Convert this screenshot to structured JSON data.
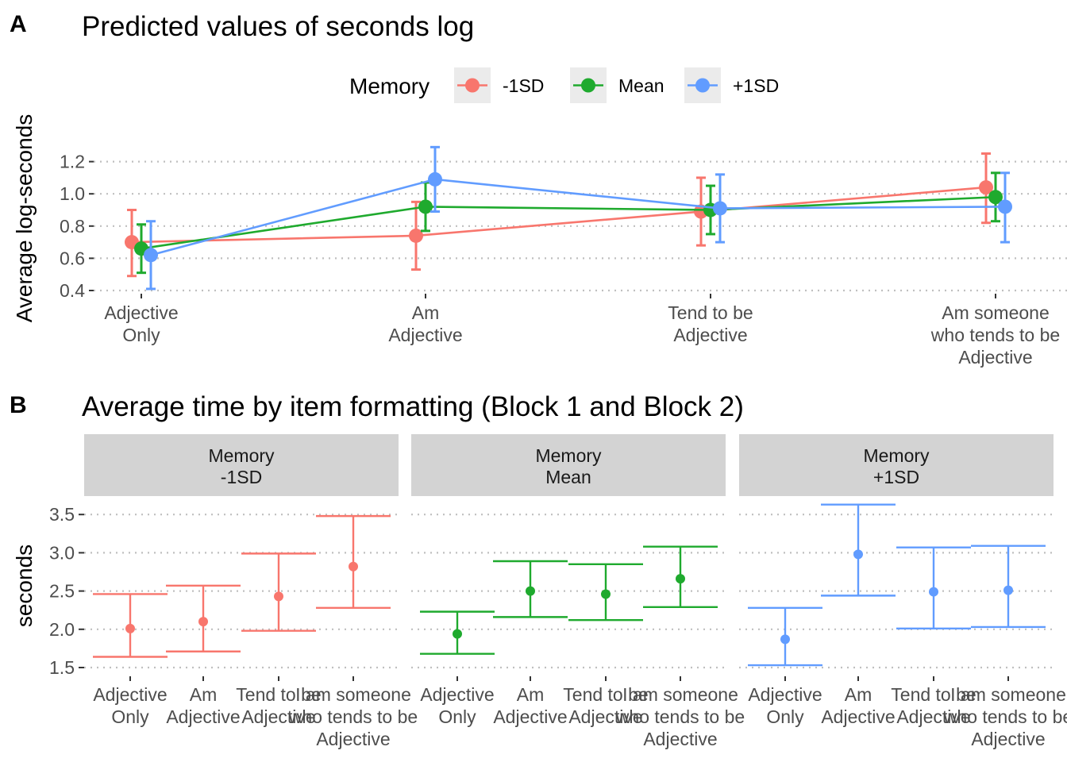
{
  "figure": {
    "panel_a_tag": "A",
    "panel_b_tag": "B"
  },
  "colors": {
    "-1SD": "#F8766D",
    "Mean": "#1FAA2E",
    "+1SD": "#619CFF",
    "grid": "#bfbfbf",
    "strip_bg": "#d3d3d3"
  },
  "chart_data": [
    {
      "type": "line",
      "title": "Predicted values of seconds log",
      "xlabel": "",
      "ylabel": "Average log-seconds",
      "categories": [
        [
          "Adjective",
          "Only"
        ],
        [
          "Am",
          "Adjective"
        ],
        [
          "Tend to be",
          "Adjective"
        ],
        [
          "Am someone",
          "who tends to be",
          "Adjective"
        ]
      ],
      "yticks": [
        "0.4",
        "0.6",
        "0.8",
        "1.0",
        "1.2"
      ],
      "ylim": [
        0.35,
        1.3
      ],
      "grid": "horizontal dotted",
      "legend": {
        "title": "Memory",
        "position": "top"
      },
      "series": [
        {
          "name": "-1SD",
          "color": "#F8766D",
          "values": [
            0.7,
            0.74,
            0.89,
            1.04
          ],
          "lower": [
            0.49,
            0.53,
            0.68,
            0.82
          ],
          "upper": [
            0.9,
            0.95,
            1.1,
            1.25
          ]
        },
        {
          "name": "Mean",
          "color": "#1FAA2E",
          "values": [
            0.66,
            0.92,
            0.9,
            0.98
          ],
          "lower": [
            0.51,
            0.77,
            0.75,
            0.83
          ],
          "upper": [
            0.81,
            1.07,
            1.05,
            1.13
          ]
        },
        {
          "name": "+1SD",
          "color": "#619CFF",
          "values": [
            0.62,
            1.09,
            0.91,
            0.92
          ],
          "lower": [
            0.41,
            0.89,
            0.7,
            0.7
          ],
          "upper": [
            0.83,
            1.29,
            1.12,
            1.13
          ]
        }
      ]
    },
    {
      "type": "scatter",
      "title": "Average time by item formatting (Block 1 and Block 2)",
      "xlabel": "",
      "ylabel": "seconds",
      "yticks": [
        "1.5",
        "2.0",
        "2.5",
        "3.0",
        "3.5"
      ],
      "ylim": [
        1.43,
        3.65
      ],
      "grid": "horizontal dotted",
      "categories": [
        [
          "Adjective",
          "Only"
        ],
        [
          "Am",
          "Adjective"
        ],
        [
          "Tend to be",
          "Adjective"
        ],
        [
          "I am someone",
          "who tends to be",
          "Adjective"
        ]
      ],
      "facets": [
        {
          "strip": [
            "Memory",
            "-1SD"
          ],
          "color": "#F8766D",
          "values": [
            2.01,
            2.1,
            2.43,
            2.82
          ],
          "lower": [
            1.64,
            1.71,
            1.98,
            2.28
          ],
          "upper": [
            2.46,
            2.57,
            2.99,
            3.48
          ]
        },
        {
          "strip": [
            "Memory",
            "Mean"
          ],
          "color": "#1FAA2E",
          "values": [
            1.94,
            2.5,
            2.46,
            2.66
          ],
          "lower": [
            1.68,
            2.16,
            2.12,
            2.29
          ],
          "upper": [
            2.23,
            2.89,
            2.85,
            3.08
          ]
        },
        {
          "strip": [
            "Memory",
            "+1SD"
          ],
          "color": "#619CFF",
          "values": [
            1.87,
            2.98,
            2.49,
            2.51
          ],
          "lower": [
            1.53,
            2.44,
            2.01,
            2.03
          ],
          "upper": [
            2.28,
            3.63,
            3.07,
            3.09
          ]
        }
      ]
    }
  ]
}
